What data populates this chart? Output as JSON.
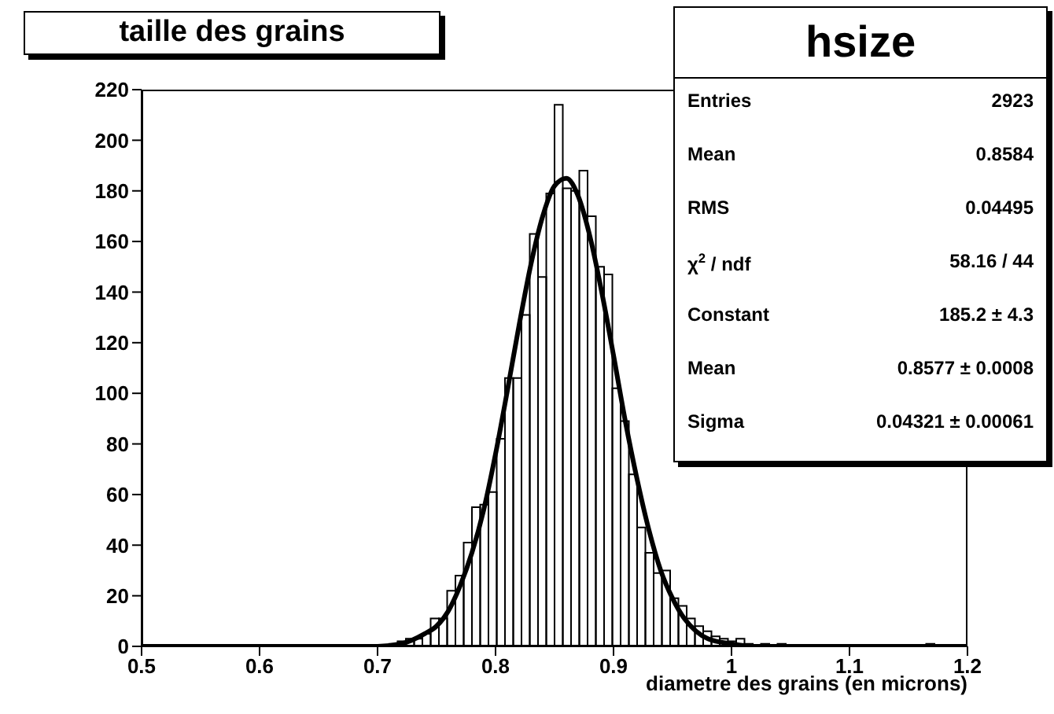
{
  "chart_data": {
    "type": "histogram",
    "title": "taille des grains",
    "xlabel": "diametre des grains (en microns)",
    "bins": [
      0.5,
      0.507,
      0.514,
      0.521,
      0.528,
      0.535,
      0.542,
      0.549,
      0.556,
      0.563,
      0.57,
      0.577,
      0.584,
      0.591,
      0.598,
      0.605,
      0.612,
      0.619,
      0.626,
      0.633,
      0.64,
      0.647,
      0.654,
      0.661,
      0.668,
      0.675,
      0.682,
      0.689,
      0.696,
      0.703,
      0.71,
      0.717,
      0.724,
      0.731,
      0.738,
      0.745,
      0.752,
      0.759,
      0.766,
      0.773,
      0.78,
      0.787,
      0.794,
      0.801,
      0.808,
      0.815,
      0.822,
      0.829,
      0.836,
      0.843,
      0.85,
      0.857,
      0.864,
      0.871,
      0.878,
      0.885,
      0.892,
      0.899,
      0.906,
      0.913,
      0.92,
      0.927,
      0.934,
      0.941,
      0.948,
      0.955,
      0.962,
      0.969,
      0.976,
      0.983,
      0.99,
      0.997,
      1.004,
      1.011,
      1.018,
      1.025,
      1.032,
      1.039,
      1.046,
      1.053,
      1.06,
      1.067,
      1.074,
      1.081,
      1.088,
      1.095,
      1.102,
      1.109,
      1.116,
      1.123,
      1.13,
      1.137,
      1.144,
      1.151,
      1.158,
      1.165,
      1.172,
      1.179,
      1.186,
      1.193,
      1.2
    ],
    "values": [
      0,
      0,
      0,
      0,
      0,
      0,
      0,
      0,
      0,
      0,
      0,
      0,
      0,
      0,
      0,
      0,
      0,
      0,
      0,
      0,
      0,
      0,
      0,
      0,
      0,
      0,
      0,
      0,
      0,
      0,
      1,
      2,
      3,
      3,
      5,
      11,
      11,
      22,
      28,
      41,
      55,
      56,
      61,
      82,
      106,
      106,
      131,
      163,
      146,
      179,
      214,
      181,
      180,
      188,
      170,
      150,
      147,
      102,
      89,
      68,
      47,
      37,
      29,
      30,
      19,
      16,
      11,
      8,
      6,
      4,
      3,
      2,
      3,
      1,
      0,
      1,
      0,
      1,
      0,
      0,
      0,
      0,
      0,
      0,
      0,
      0,
      0,
      0,
      0,
      0,
      0,
      0,
      0,
      0,
      0,
      1,
      0,
      0,
      0,
      0
    ],
    "color": "#000000",
    "series": [
      {
        "type": "line",
        "color": "#000000",
        "x": [
          0.5,
          0.6,
          0.68,
          0.7,
          0.72,
          0.74,
          0.75,
          0.76,
          0.77,
          0.78,
          0.79,
          0.8,
          0.81,
          0.82,
          0.83,
          0.84,
          0.85,
          0.86,
          0.87,
          0.88,
          0.89,
          0.9,
          0.91,
          0.92,
          0.93,
          0.94,
          0.95,
          0.96,
          0.97,
          0.98,
          1.0,
          1.02,
          1.05,
          1.2
        ],
        "values": [
          0,
          0,
          0,
          0,
          1,
          5,
          8,
          14,
          24,
          37,
          54,
          76,
          101,
          127,
          151,
          170,
          182,
          185,
          178,
          162,
          140,
          115,
          89,
          66,
          46,
          30,
          19,
          11,
          6,
          3,
          1,
          0,
          0,
          0
        ]
      }
    ],
    "annotations": [
      "hsize",
      "Entries",
      "2923",
      "Mean",
      "0.8584",
      "RMS",
      "0.04495",
      "χ$^{2}$ / ndf",
      "58.16 / 44",
      "Constant",
      "185.2 ± 4.3",
      "Mean",
      "0.8577 ± 0.0008",
      "Sigma",
      "0.04321 ± 0.00061"
    ],
    "xlim": [
      0.5,
      1.2
    ],
    "xticks": [
      0.5,
      0.6,
      0.7,
      0.8,
      0.9,
      1,
      1.1,
      1.2
    ],
    "ylim": [
      0,
      220
    ],
    "yticks": [
      0,
      20,
      40,
      60,
      80,
      100,
      120,
      140,
      160,
      180,
      200,
      220
    ],
    "grid": false
  }
}
